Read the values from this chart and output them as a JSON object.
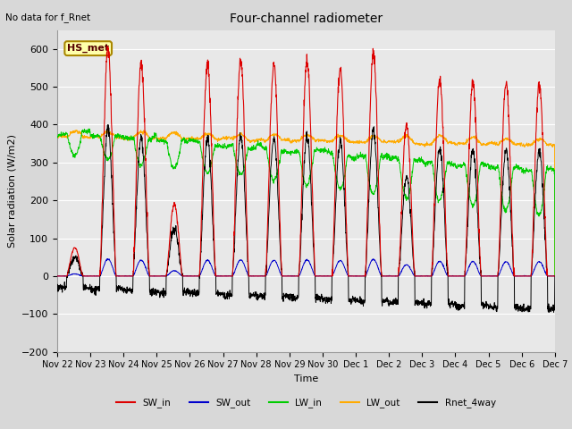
{
  "title": "Four-channel radiometer",
  "top_left_note": "No data for f_Rnet",
  "ylabel": "Solar radiation (W/m2)",
  "xlabel": "Time",
  "ylim": [
    -200,
    650
  ],
  "yticks": [
    -200,
    -100,
    0,
    100,
    200,
    300,
    400,
    500,
    600
  ],
  "fig_bg_color": "#d8d8d8",
  "plot_bg_color": "#e8e8e8",
  "annotation_box": "HS_met",
  "x_tick_labels": [
    "Nov 22",
    "Nov 23",
    "Nov 24",
    "Nov 25",
    "Nov 26",
    "Nov 27",
    "Nov 28",
    "Nov 29",
    "Nov 30",
    "Dec 1",
    "Dec 2",
    "Dec 3",
    "Dec 4",
    "Dec 5",
    "Dec 6",
    "Dec 7"
  ],
  "n_days": 15,
  "SW_in_peaks": [
    75,
    600,
    560,
    190,
    560,
    570,
    560,
    570,
    550,
    590,
    400,
    520,
    510,
    510,
    510
  ],
  "legend": [
    {
      "label": "SW_in",
      "color": "#dd0000"
    },
    {
      "label": "SW_out",
      "color": "#0000cc"
    },
    {
      "label": "LW_in",
      "color": "#00cc00"
    },
    {
      "label": "LW_out",
      "color": "#ffaa00"
    },
    {
      "label": "Rnet_4way",
      "color": "#000000"
    }
  ]
}
